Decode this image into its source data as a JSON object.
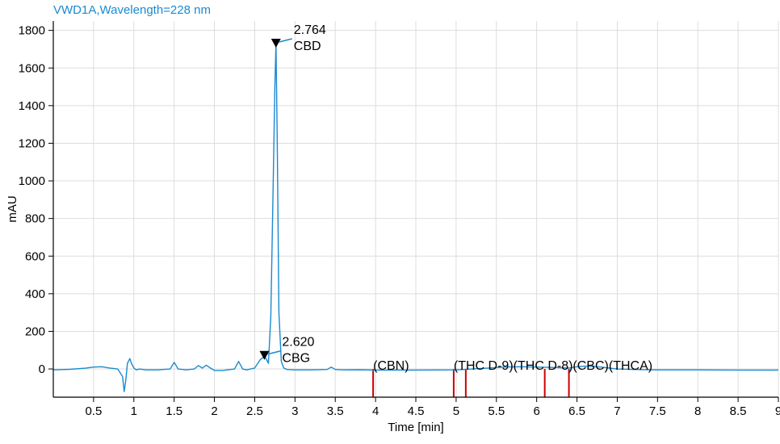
{
  "chart_data": {
    "type": "line",
    "title": "VWD1A,Wavelength=228 nm",
    "xlabel": "Time [min]",
    "ylabel": "mAU",
    "xlim": [
      0,
      9
    ],
    "ylim": [
      -150,
      1850
    ],
    "x_ticks": [
      0.5,
      1,
      1.5,
      2,
      2.5,
      3,
      3.5,
      4,
      4.5,
      5,
      5.5,
      6,
      6.5,
      7,
      7.5,
      8,
      8.5,
      9
    ],
    "x_tick_labels": [
      "0.5",
      "1",
      "1.5",
      "2",
      "2.5",
      "3",
      "3.5",
      "4",
      "4.5",
      "5",
      "5.5",
      "6",
      "6.5",
      "7",
      "7.5",
      "8",
      "8.5",
      "9"
    ],
    "y_ticks": [
      0,
      200,
      400,
      600,
      800,
      1000,
      1200,
      1400,
      1600,
      1800
    ],
    "y_tick_labels": [
      "0",
      "200",
      "400",
      "600",
      "800",
      "1000",
      "1200",
      "1400",
      "1600",
      "1800"
    ],
    "grid": true,
    "colors": {
      "trace": "#1a8ad0",
      "title": "#1a8ad0",
      "expected_marker": "#cc0000",
      "grid": "#dddddd",
      "axis": "#000000"
    },
    "series": [
      {
        "x": [
          0.0,
          0.2,
          0.4,
          0.5,
          0.6,
          0.7,
          0.8,
          0.86,
          0.88,
          0.9,
          0.92,
          0.95,
          0.97,
          1.0,
          1.03,
          1.07,
          1.15,
          1.3,
          1.45,
          1.5,
          1.55,
          1.65,
          1.75,
          1.8,
          1.85,
          1.9,
          1.95,
          2.0,
          2.1,
          2.25,
          2.3,
          2.35,
          2.4,
          2.5,
          2.57,
          2.6,
          2.62,
          2.64,
          2.67,
          2.7,
          2.73,
          2.75,
          2.764,
          2.78,
          2.8,
          2.83,
          2.86,
          2.9,
          3.0,
          3.2,
          3.4,
          3.45,
          3.5,
          3.6,
          3.8,
          4.0,
          4.5,
          5.0,
          5.2,
          5.4,
          5.6,
          5.8,
          6.0,
          6.2,
          6.4,
          6.5,
          6.6,
          6.8,
          7.0,
          7.2,
          7.5,
          8.0,
          8.5,
          9.0
        ],
        "y": [
          -5,
          -2,
          4,
          10,
          12,
          5,
          0,
          -40,
          -120,
          -60,
          30,
          55,
          30,
          5,
          -5,
          0,
          -5,
          -5,
          0,
          35,
          0,
          -5,
          0,
          18,
          5,
          20,
          5,
          -8,
          -8,
          0,
          40,
          0,
          -5,
          5,
          50,
          60,
          70,
          55,
          30,
          280,
          1000,
          1500,
          1730,
          1200,
          300,
          40,
          5,
          -3,
          -5,
          -5,
          -3,
          10,
          -3,
          -5,
          -4,
          -6,
          -6,
          -5,
          0,
          5,
          10,
          12,
          10,
          8,
          5,
          12,
          15,
          10,
          0,
          -3,
          -5,
          -5,
          -6,
          -6
        ]
      }
    ],
    "peaks": [
      {
        "time": "2.620",
        "name": "CBG",
        "x": 2.62,
        "y": 70
      },
      {
        "time": "2.764",
        "name": "CBD",
        "x": 2.764,
        "y": 1730
      }
    ],
    "expected_compounds": [
      {
        "name": "(CBN)",
        "x": 3.97
      },
      {
        "name": "(THC D-9)",
        "x": 4.97
      },
      {
        "name": "(THC D-8)",
        "x": 5.12
      },
      {
        "name": "(CBC)",
        "x": 6.1
      },
      {
        "name": "(THCA)",
        "x": 6.4
      }
    ]
  }
}
